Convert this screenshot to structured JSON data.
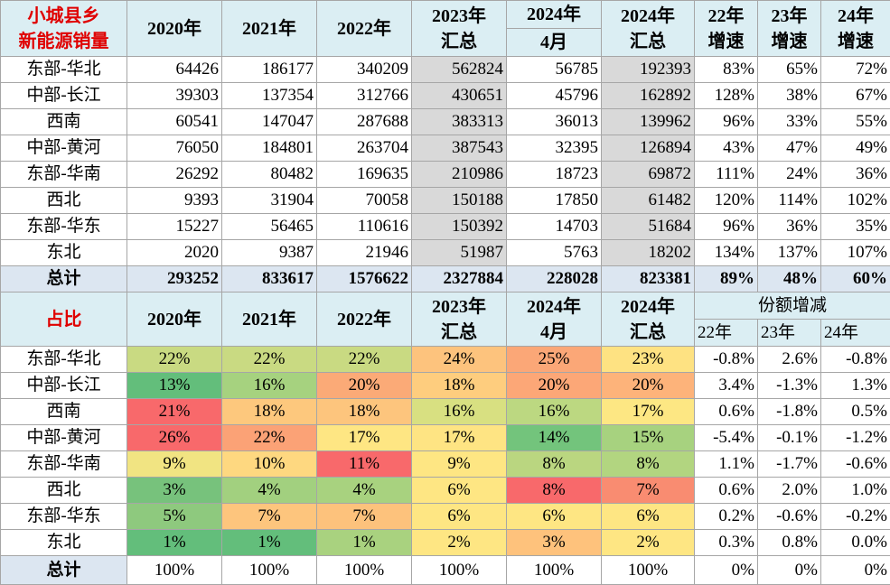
{
  "sales": {
    "title": [
      "小城县乡",
      "新能源销量"
    ],
    "columns": [
      [
        "2020年"
      ],
      [
        "2021年"
      ],
      [
        "2022年"
      ],
      [
        "2023年",
        "汇总"
      ],
      [
        "2024年",
        "4月"
      ],
      [
        "2024年",
        "汇总"
      ],
      [
        "22年",
        "增速"
      ],
      [
        "23年",
        "增速"
      ],
      [
        "24年",
        "增速"
      ]
    ],
    "rows": [
      {
        "label": "东部-华北",
        "values": [
          "64426",
          "186177",
          "340209",
          "562824",
          "56785",
          "192393",
          "83%",
          "65%",
          "72%"
        ]
      },
      {
        "label": "中部-长江",
        "values": [
          "39303",
          "137354",
          "312766",
          "430651",
          "45796",
          "162892",
          "128%",
          "38%",
          "67%"
        ]
      },
      {
        "label": "西南",
        "values": [
          "60541",
          "147047",
          "287688",
          "383313",
          "36013",
          "139962",
          "96%",
          "33%",
          "55%"
        ]
      },
      {
        "label": "中部-黄河",
        "values": [
          "76050",
          "184801",
          "263704",
          "387543",
          "32395",
          "126894",
          "43%",
          "47%",
          "49%"
        ]
      },
      {
        "label": "东部-华南",
        "values": [
          "26292",
          "80482",
          "169635",
          "210986",
          "18723",
          "69872",
          "111%",
          "24%",
          "36%"
        ]
      },
      {
        "label": "西北",
        "values": [
          "9393",
          "31904",
          "70058",
          "150188",
          "17850",
          "61482",
          "120%",
          "114%",
          "102%"
        ]
      },
      {
        "label": "东部-华东",
        "values": [
          "15227",
          "56465",
          "110616",
          "150392",
          "14703",
          "51684",
          "96%",
          "36%",
          "35%"
        ]
      },
      {
        "label": "东北",
        "values": [
          "2020",
          "9387",
          "21946",
          "51987",
          "5763",
          "18202",
          "134%",
          "137%",
          "107%"
        ]
      }
    ],
    "total": {
      "label": "总计",
      "values": [
        "293252",
        "833617",
        "1576622",
        "2327884",
        "228028",
        "823381",
        "89%",
        "48%",
        "60%"
      ]
    }
  },
  "share": {
    "title": "占比",
    "columns": [
      [
        "2020年"
      ],
      [
        "2021年"
      ],
      [
        "2022年"
      ],
      [
        "2023年",
        "汇总"
      ],
      [
        "2024年",
        "4月"
      ],
      [
        "2024年",
        "汇总"
      ]
    ],
    "change_title": "份额增减",
    "change_columns": [
      "22年",
      "23年",
      "24年"
    ],
    "rows": [
      {
        "label": "东部-华北",
        "values": [
          "22%",
          "22%",
          "22%",
          "24%",
          "25%",
          "23%"
        ],
        "changes": [
          "-0.8%",
          "2.6%",
          "-0.8%"
        ],
        "colors": [
          "#c9da82",
          "#c9da82",
          "#c9da82",
          "#fdc37d",
          "#fba777",
          "#fee282"
        ]
      },
      {
        "label": "中部-长江",
        "values": [
          "13%",
          "16%",
          "20%",
          "18%",
          "20%",
          "20%"
        ],
        "changes": [
          "3.4%",
          "-1.3%",
          "1.3%"
        ],
        "colors": [
          "#63be7b",
          "#a6d27f",
          "#fbaa77",
          "#fecd7e",
          "#fca777",
          "#fdb37a"
        ]
      },
      {
        "label": "西南",
        "values": [
          "21%",
          "18%",
          "18%",
          "16%",
          "16%",
          "17%"
        ],
        "changes": [
          "0.6%",
          "-1.8%",
          "0.5%"
        ],
        "colors": [
          "#f8696b",
          "#fdc87d",
          "#fdc57d",
          "#d8e081",
          "#bcd881",
          "#fde783"
        ]
      },
      {
        "label": "中部-黄河",
        "values": [
          "26%",
          "22%",
          "17%",
          "17%",
          "14%",
          "15%"
        ],
        "changes": [
          "-5.4%",
          "-0.1%",
          "-1.2%"
        ],
        "colors": [
          "#f8696b",
          "#fba276",
          "#fee683",
          "#fee483",
          "#73c47c",
          "#a7d27f"
        ]
      },
      {
        "label": "东部-华南",
        "values": [
          "9%",
          "10%",
          "11%",
          "9%",
          "8%",
          "8%"
        ],
        "changes": [
          "1.1%",
          "-1.7%",
          "-0.6%"
        ],
        "colors": [
          "#f1e482",
          "#fed880",
          "#f8696b",
          "#fee683",
          "#bad680",
          "#b2d580"
        ]
      },
      {
        "label": "西北",
        "values": [
          "3%",
          "4%",
          "4%",
          "6%",
          "8%",
          "7%"
        ],
        "changes": [
          "0.6%",
          "2.0%",
          "1.0%"
        ],
        "colors": [
          "#77c27c",
          "#a2d07f",
          "#a8d27f",
          "#fee683",
          "#f8696b",
          "#f98c71"
        ]
      },
      {
        "label": "东部-华东",
        "values": [
          "5%",
          "7%",
          "7%",
          "6%",
          "6%",
          "6%"
        ],
        "changes": [
          "0.2%",
          "-0.6%",
          "-0.2%"
        ],
        "colors": [
          "#8ec97e",
          "#fdc57d",
          "#fdc27c",
          "#fee683",
          "#fee683",
          "#fee683"
        ]
      },
      {
        "label": "东北",
        "values": [
          "1%",
          "1%",
          "1%",
          "2%",
          "3%",
          "2%"
        ],
        "changes": [
          "0.3%",
          "0.8%",
          "0.0%"
        ],
        "colors": [
          "#63be7b",
          "#63be7b",
          "#a9d27f",
          "#fee683",
          "#fec27c",
          "#fee683"
        ]
      }
    ],
    "total": {
      "label": "总计",
      "values": [
        "100%",
        "100%",
        "100%",
        "100%",
        "100%",
        "100%"
      ],
      "changes": [
        "0%",
        "0%",
        "0%"
      ]
    }
  }
}
